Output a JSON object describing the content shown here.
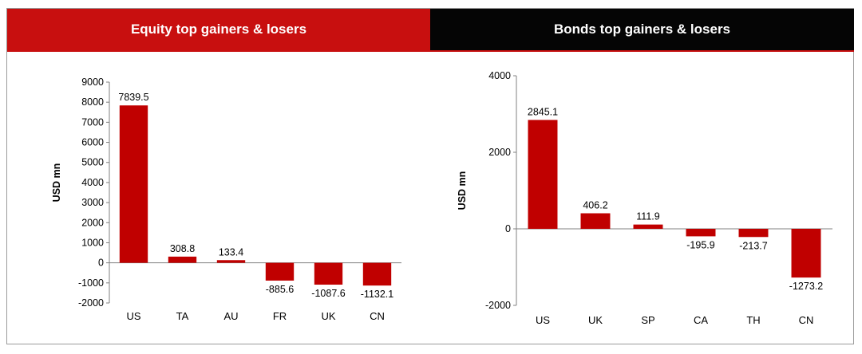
{
  "colors": {
    "bar": "#c00000",
    "equity_header": "#c80f0f",
    "bonds_header": "#050505",
    "axis": "#808080",
    "text": "#000000"
  },
  "panels": {
    "equity": {
      "title": "Equity top gainers & losers"
    },
    "bonds": {
      "title": "Bonds top gainers & losers"
    }
  },
  "chart_data": [
    {
      "type": "bar",
      "title": "Equity top gainers & losers",
      "ylabel": "USD mn",
      "xlabel": "",
      "categories": [
        "US",
        "TA",
        "AU",
        "FR",
        "UK",
        "CN"
      ],
      "values": [
        7839.5,
        308.8,
        133.4,
        -885.6,
        -1087.6,
        -1132.1
      ],
      "value_labels": [
        "7839.5",
        "308.8",
        "133.4",
        "-885.6",
        "-1087.6",
        "-1132.1"
      ],
      "ylim": [
        -2000,
        9000
      ],
      "yticks": [
        9000,
        8000,
        7000,
        6000,
        5000,
        4000,
        3000,
        2000,
        1000,
        0,
        -1000,
        -2000
      ],
      "ytick_labels": [
        "9000",
        "8000",
        "7000",
        "6000",
        "5000",
        "4000",
        "3000",
        "2000",
        "1000",
        "0",
        "-1000",
        "-2000"
      ],
      "grid": false,
      "legend": "none"
    },
    {
      "type": "bar",
      "title": "Bonds top gainers & losers",
      "ylabel": "USD mn",
      "xlabel": "",
      "categories": [
        "US",
        "UK",
        "SP",
        "CA",
        "TH",
        "CN"
      ],
      "values": [
        2845.1,
        406.2,
        111.9,
        -195.9,
        -213.7,
        -1273.2
      ],
      "value_labels": [
        "2845.1",
        "406.2",
        "111.9",
        "-195.9",
        "-213.7",
        "-1273.2"
      ],
      "ylim": [
        -2000,
        4000
      ],
      "yticks": [
        4000,
        2000,
        0,
        -2000
      ],
      "ytick_labels": [
        "4000",
        "2000",
        "0",
        "-2000"
      ],
      "grid": false,
      "legend": "none"
    }
  ]
}
